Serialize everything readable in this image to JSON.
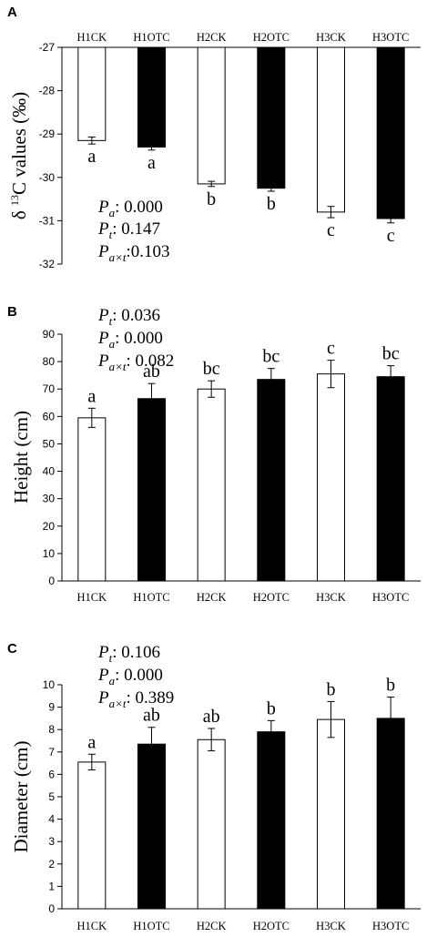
{
  "chart_data": [
    {
      "panel": "A",
      "type": "bar",
      "ylabel_prefix": "δ",
      "ylabel_sup": "13",
      "ylabel_rest": "C values (‰)",
      "ylim": [
        -32,
        -27
      ],
      "yticks": [
        "-27",
        "-28",
        "-29",
        "-30",
        "-31",
        "-32"
      ],
      "category_axis": "top",
      "categories": [
        "H1CK",
        "H1OTC",
        "H2CK",
        "H2OTC",
        "H3CK",
        "H3OTC"
      ],
      "values": [
        -29.15,
        -29.3,
        -30.15,
        -30.25,
        -30.8,
        -30.95
      ],
      "errors": [
        0.08,
        0.07,
        0.06,
        0.07,
        0.13,
        0.1
      ],
      "fills": [
        "#ffffff",
        "#000000",
        "#ffffff",
        "#000000",
        "#ffffff",
        "#000000"
      ],
      "letters": [
        "a",
        "a",
        "b",
        "b",
        "c",
        "c"
      ],
      "stats": [
        {
          "sym": "P",
          "sub": "a",
          "value": ": 0.000"
        },
        {
          "sym": "P",
          "sub": "t",
          "value": ": 0.147"
        },
        {
          "sym": "P",
          "sub": "a×t",
          "value": ":0.103"
        }
      ]
    },
    {
      "panel": "B",
      "type": "bar",
      "ylabel": "Height (cm)",
      "ylim": [
        0,
        90
      ],
      "yticks": [
        "0",
        "10",
        "20",
        "30",
        "40",
        "50",
        "60",
        "70",
        "80",
        "90"
      ],
      "category_axis": "bottom",
      "categories": [
        "H1CK",
        "H1OTC",
        "H2CK",
        "H2OTC",
        "H3CK",
        "H3OTC"
      ],
      "values": [
        59.5,
        66.5,
        70,
        73.5,
        75.5,
        74.5
      ],
      "errors": [
        3.5,
        5.5,
        3,
        4,
        5,
        4
      ],
      "fills": [
        "#ffffff",
        "#000000",
        "#ffffff",
        "#000000",
        "#ffffff",
        "#000000"
      ],
      "letters": [
        "a",
        "ab",
        "bc",
        "bc",
        "c",
        "bc"
      ],
      "stats": [
        {
          "sym": "P",
          "sub": "t",
          "value": ": 0.036"
        },
        {
          "sym": "P",
          "sub": "a",
          "value": ": 0.000"
        },
        {
          "sym": "P",
          "sub": "a×t",
          "value": ": 0.082"
        }
      ]
    },
    {
      "panel": "C",
      "type": "bar",
      "ylabel": "Diameter (cm)",
      "ylim": [
        0,
        10
      ],
      "yticks": [
        "0",
        "1",
        "2",
        "3",
        "4",
        "5",
        "6",
        "7",
        "8",
        "9",
        "10"
      ],
      "category_axis": "bottom",
      "categories": [
        "H1CK",
        "H1OTC",
        "H2CK",
        "H2OTC",
        "H3CK",
        "H3OTC"
      ],
      "values": [
        6.55,
        7.35,
        7.55,
        7.9,
        8.45,
        8.5
      ],
      "errors": [
        0.35,
        0.75,
        0.5,
        0.5,
        0.8,
        0.95
      ],
      "fills": [
        "#ffffff",
        "#000000",
        "#ffffff",
        "#000000",
        "#ffffff",
        "#000000"
      ],
      "letters": [
        "a",
        "ab",
        "ab",
        "b",
        "b",
        "b"
      ],
      "stats": [
        {
          "sym": "P",
          "sub": "t",
          "value": ": 0.106"
        },
        {
          "sym": "P",
          "sub": "a",
          "value": ": 0.000"
        },
        {
          "sym": "P",
          "sub": "a×t",
          "value": ": 0.389"
        }
      ]
    }
  ]
}
